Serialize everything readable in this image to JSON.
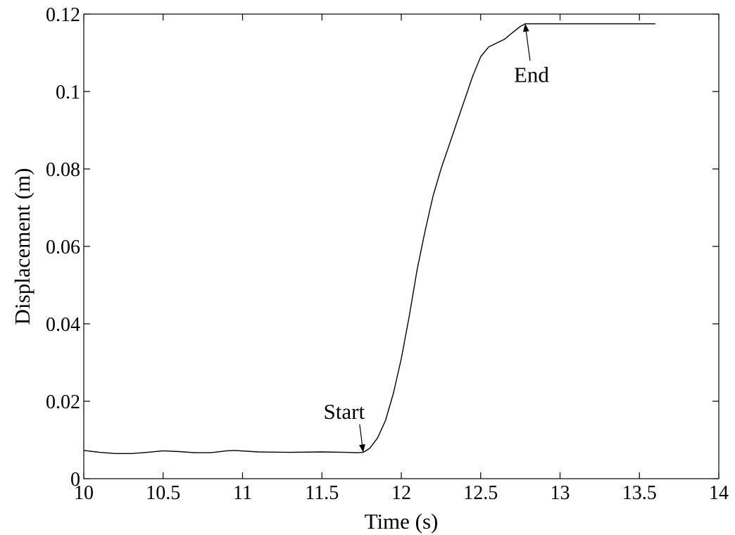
{
  "chart_data": {
    "type": "line",
    "title": "",
    "xlabel": "Time (s)",
    "ylabel": "Displacement (m)",
    "xlim": [
      10,
      14
    ],
    "ylim": [
      0,
      0.12
    ],
    "xticks": [
      10,
      10.5,
      11,
      11.5,
      12,
      12.5,
      13,
      13.5,
      14
    ],
    "xtick_labels": [
      "10",
      "10.5",
      "11",
      "11.5",
      "12",
      "12.5",
      "13",
      "13.5",
      "14"
    ],
    "yticks": [
      0,
      0.02,
      0.04,
      0.06,
      0.08,
      0.1,
      0.12
    ],
    "ytick_labels": [
      "0",
      "0.02",
      "0.04",
      "0.06",
      "0.08",
      "0.1",
      "0.12"
    ],
    "grid": false,
    "series": [
      {
        "x": [
          10,
          10.1,
          10.2,
          10.3,
          10.4,
          10.5,
          10.6,
          10.7,
          10.8,
          10.9,
          10.95,
          11.1,
          11.3,
          11.5,
          11.65,
          11.72,
          11.76,
          11.8,
          11.85,
          11.9,
          11.95,
          12.0,
          12.05,
          12.1,
          12.15,
          12.2,
          12.25,
          12.3,
          12.35,
          12.4,
          12.45,
          12.5,
          12.55,
          12.6,
          12.65,
          12.7,
          12.75,
          12.78,
          13.0,
          13.3,
          13.6
        ],
        "y": [
          0.0073,
          0.0068,
          0.0065,
          0.0065,
          0.0068,
          0.0072,
          0.007,
          0.0067,
          0.0067,
          0.0072,
          0.0073,
          0.0069,
          0.0068,
          0.0069,
          0.0068,
          0.0067,
          0.0068,
          0.0078,
          0.0105,
          0.015,
          0.022,
          0.031,
          0.042,
          0.054,
          0.064,
          0.073,
          0.08,
          0.086,
          0.092,
          0.098,
          0.104,
          0.109,
          0.1115,
          0.1125,
          0.1135,
          0.1152,
          0.1168,
          0.1175,
          0.1175,
          0.1175,
          0.1175
        ]
      }
    ],
    "annotations": [
      {
        "text": "Start",
        "x": 11.76,
        "y": 0.0068,
        "text_x": 11.64,
        "text_y": 0.0155
      },
      {
        "text": "End",
        "x": 12.78,
        "y": 0.1175,
        "text_x": 12.82,
        "text_y": 0.1025
      }
    ]
  }
}
